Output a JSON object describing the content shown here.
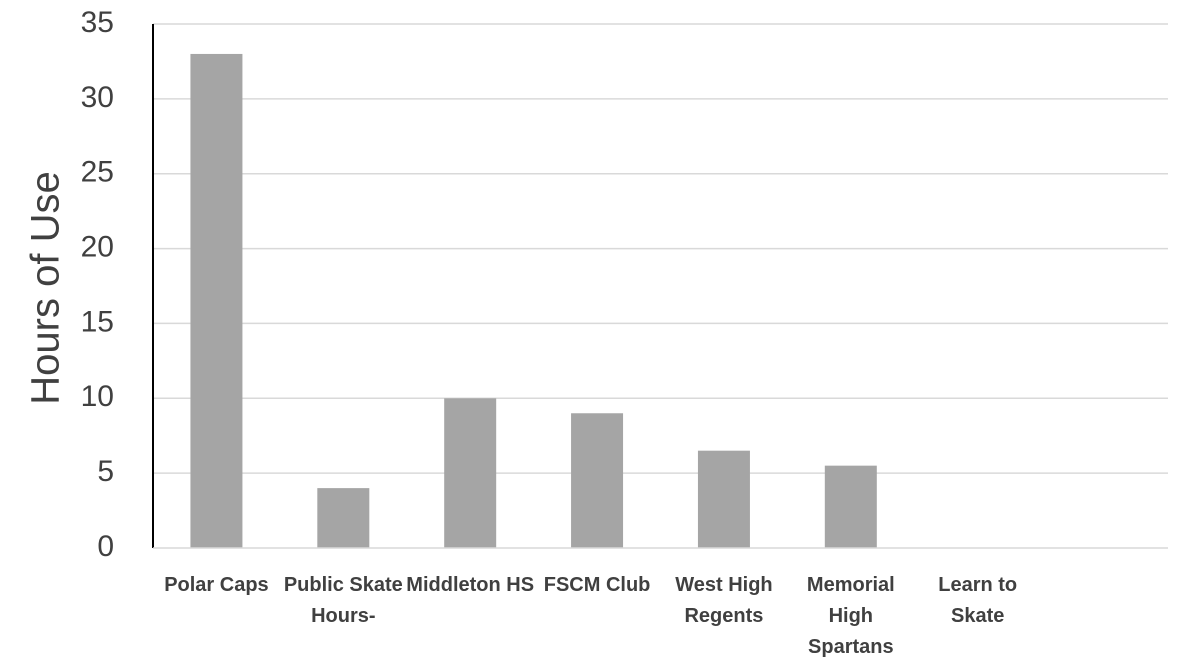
{
  "chart_data": {
    "type": "bar",
    "title": "",
    "xlabel": "",
    "ylabel": "Hours of Use",
    "ylim": [
      0,
      35
    ],
    "yticks": [
      0,
      5,
      10,
      15,
      20,
      25,
      30,
      35
    ],
    "grid": true,
    "categories": [
      "Polar Caps",
      "Public Skate Hours-",
      "Middleton HS",
      "FSCM Club",
      "West High Regents",
      "Memorial High Spartans",
      "Learn to Skate",
      ""
    ],
    "values": [
      33,
      4,
      10,
      9,
      6.5,
      5.5,
      0,
      0
    ],
    "colors": {
      "bar": "#a5a5a5",
      "grid": "#d9d9d9",
      "axis": "#000000",
      "text": "#404040"
    }
  }
}
